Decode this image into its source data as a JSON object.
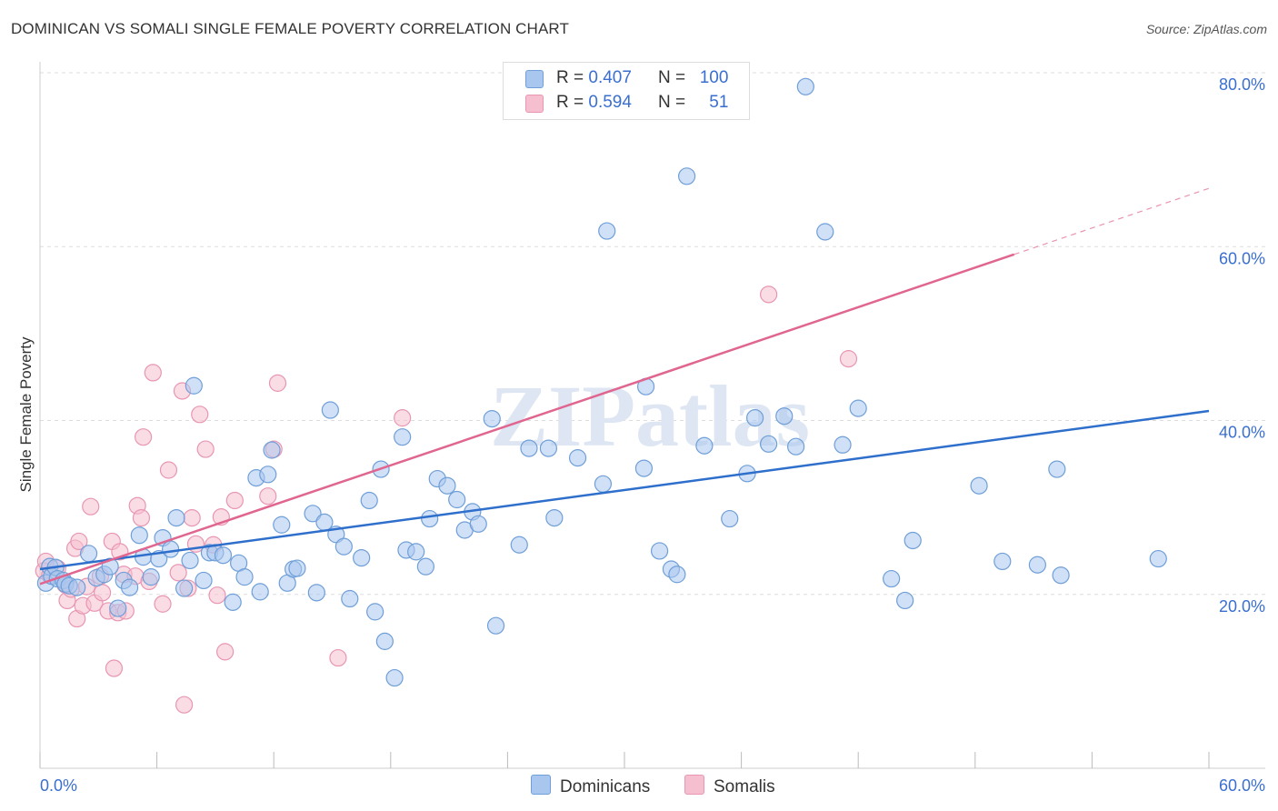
{
  "title": "DOMINICAN VS SOMALI SINGLE FEMALE POVERTY CORRELATION CHART",
  "source": "Source: ZipAtlas.com",
  "watermark": "ZIPatlas",
  "legend": {
    "rows": [
      {
        "r_label": "R =",
        "r_value": "0.407",
        "n_label": "N =",
        "n_value": "100"
      },
      {
        "r_label": "R =",
        "r_value": "0.594",
        "n_label": "N =",
        "n_value": "51"
      }
    ]
  },
  "bottom_legend": [
    "Dominicans",
    "Somalis"
  ],
  "colors": {
    "blue_fill": "#a9c7ee",
    "blue_stroke": "#6f9fd8",
    "blue_line": "#2f6fcc",
    "pink_fill": "#f6bfd0",
    "pink_stroke": "#e896b2",
    "pink_line": "#e06690",
    "axis_text": "#3a6fcf",
    "grid": "#dddddd"
  },
  "chart_data": {
    "type": "scatter",
    "ylabel": "Single Female Poverty",
    "xlim": [
      0,
      60
    ],
    "ylim": [
      0,
      80
    ],
    "x_tick_labels": [
      "0.0%",
      "60.0%"
    ],
    "y_tick_labels": [
      "20.0%",
      "40.0%",
      "60.0%",
      "80.0%"
    ],
    "y_ticks": [
      20,
      40,
      60,
      80
    ],
    "grid": "horizontal dashed",
    "legend_position": "top-center",
    "series": [
      {
        "name": "Dominicans",
        "color": "#6f9fd8",
        "trend": {
          "x": [
            0,
            60
          ],
          "y": [
            22.9,
            41.1
          ]
        },
        "points": [
          [
            0.3,
            21.3
          ],
          [
            0.5,
            23.2
          ],
          [
            0.6,
            22.1
          ],
          [
            0.8,
            23.1
          ],
          [
            0.9,
            21.8
          ],
          [
            1.2,
            21.6
          ],
          [
            1.3,
            21.2
          ],
          [
            1.5,
            21.0
          ],
          [
            1.9,
            20.8
          ],
          [
            2.5,
            24.7
          ],
          [
            2.9,
            21.9
          ],
          [
            3.3,
            22.3
          ],
          [
            3.6,
            23.2
          ],
          [
            4.0,
            18.4
          ],
          [
            4.3,
            21.6
          ],
          [
            4.6,
            20.8
          ],
          [
            5.1,
            26.8
          ],
          [
            5.3,
            24.3
          ],
          [
            5.7,
            22.0
          ],
          [
            6.1,
            24.1
          ],
          [
            6.3,
            26.5
          ],
          [
            6.7,
            25.2
          ],
          [
            7.0,
            28.8
          ],
          [
            7.4,
            20.7
          ],
          [
            7.7,
            23.9
          ],
          [
            7.9,
            44.0
          ],
          [
            8.4,
            21.6
          ],
          [
            8.7,
            24.8
          ],
          [
            9.0,
            24.8
          ],
          [
            9.4,
            24.5
          ],
          [
            9.9,
            19.1
          ],
          [
            10.2,
            23.6
          ],
          [
            10.5,
            22.0
          ],
          [
            11.1,
            33.4
          ],
          [
            11.3,
            20.3
          ],
          [
            11.7,
            33.8
          ],
          [
            11.9,
            36.6
          ],
          [
            12.4,
            28.0
          ],
          [
            12.7,
            21.3
          ],
          [
            13.0,
            22.9
          ],
          [
            13.2,
            23.0
          ],
          [
            14.0,
            29.3
          ],
          [
            14.2,
            20.2
          ],
          [
            14.6,
            28.3
          ],
          [
            14.9,
            41.2
          ],
          [
            15.2,
            26.9
          ],
          [
            15.6,
            25.5
          ],
          [
            15.9,
            19.5
          ],
          [
            16.5,
            24.2
          ],
          [
            16.9,
            30.8
          ],
          [
            17.2,
            18.0
          ],
          [
            17.5,
            34.4
          ],
          [
            17.7,
            14.6
          ],
          [
            18.2,
            10.4
          ],
          [
            18.6,
            38.1
          ],
          [
            18.8,
            25.1
          ],
          [
            19.3,
            24.9
          ],
          [
            19.8,
            23.2
          ],
          [
            20.0,
            28.7
          ],
          [
            20.4,
            33.3
          ],
          [
            20.9,
            32.5
          ],
          [
            21.4,
            30.9
          ],
          [
            21.8,
            27.4
          ],
          [
            22.2,
            29.5
          ],
          [
            22.5,
            28.1
          ],
          [
            23.2,
            40.2
          ],
          [
            23.4,
            16.4
          ],
          [
            24.6,
            25.7
          ],
          [
            25.1,
            36.8
          ],
          [
            26.1,
            36.8
          ],
          [
            26.4,
            28.8
          ],
          [
            27.6,
            35.7
          ],
          [
            28.9,
            32.7
          ],
          [
            29.1,
            61.8
          ],
          [
            31.0,
            34.5
          ],
          [
            31.1,
            43.9
          ],
          [
            31.8,
            25.0
          ],
          [
            32.4,
            22.9
          ],
          [
            32.7,
            22.3
          ],
          [
            33.2,
            68.1
          ],
          [
            34.1,
            37.1
          ],
          [
            35.4,
            28.7
          ],
          [
            36.3,
            33.9
          ],
          [
            36.7,
            40.3
          ],
          [
            37.4,
            37.3
          ],
          [
            38.2,
            40.5
          ],
          [
            38.8,
            37.0
          ],
          [
            39.3,
            78.4
          ],
          [
            40.3,
            61.7
          ],
          [
            41.2,
            37.2
          ],
          [
            42.0,
            41.4
          ],
          [
            43.7,
            21.8
          ],
          [
            44.4,
            19.3
          ],
          [
            44.8,
            26.2
          ],
          [
            48.2,
            32.5
          ],
          [
            49.4,
            23.8
          ],
          [
            51.2,
            23.4
          ],
          [
            52.2,
            34.4
          ],
          [
            52.4,
            22.2
          ],
          [
            57.4,
            24.1
          ]
        ]
      },
      {
        "name": "Somalis",
        "color": "#e896b2",
        "trend": {
          "x": [
            0,
            50
          ],
          "y": [
            21.2,
            59.1
          ]
        },
        "trend_dashed": {
          "x": [
            50,
            60
          ],
          "y": [
            59.1,
            66.7
          ]
        },
        "points": [
          [
            0.2,
            22.7
          ],
          [
            0.3,
            23.8
          ],
          [
            0.5,
            22.2
          ],
          [
            0.9,
            23.0
          ],
          [
            1.3,
            21.1
          ],
          [
            1.4,
            19.3
          ],
          [
            1.6,
            20.6
          ],
          [
            1.8,
            25.3
          ],
          [
            1.9,
            17.2
          ],
          [
            2.0,
            26.1
          ],
          [
            2.2,
            18.7
          ],
          [
            2.4,
            20.9
          ],
          [
            2.6,
            30.1
          ],
          [
            2.8,
            19.0
          ],
          [
            3.1,
            22.1
          ],
          [
            3.2,
            20.2
          ],
          [
            3.5,
            18.1
          ],
          [
            3.7,
            26.1
          ],
          [
            3.8,
            11.5
          ],
          [
            4.0,
            17.9
          ],
          [
            4.1,
            24.9
          ],
          [
            4.3,
            22.3
          ],
          [
            4.4,
            18.1
          ],
          [
            4.9,
            22.1
          ],
          [
            5.0,
            30.2
          ],
          [
            5.2,
            28.8
          ],
          [
            5.3,
            38.1
          ],
          [
            5.6,
            21.5
          ],
          [
            5.8,
            45.5
          ],
          [
            6.3,
            18.9
          ],
          [
            6.6,
            34.3
          ],
          [
            7.1,
            22.5
          ],
          [
            7.3,
            43.4
          ],
          [
            7.4,
            7.3
          ],
          [
            7.6,
            20.7
          ],
          [
            7.8,
            28.8
          ],
          [
            8.0,
            25.8
          ],
          [
            8.2,
            40.7
          ],
          [
            8.5,
            36.7
          ],
          [
            8.9,
            25.7
          ],
          [
            9.1,
            19.9
          ],
          [
            9.3,
            28.9
          ],
          [
            9.5,
            13.4
          ],
          [
            10.0,
            30.8
          ],
          [
            11.7,
            31.3
          ],
          [
            12.0,
            36.7
          ],
          [
            12.2,
            44.3
          ],
          [
            15.3,
            12.7
          ],
          [
            18.6,
            40.3
          ],
          [
            37.4,
            54.5
          ],
          [
            41.5,
            47.1
          ]
        ]
      }
    ]
  }
}
